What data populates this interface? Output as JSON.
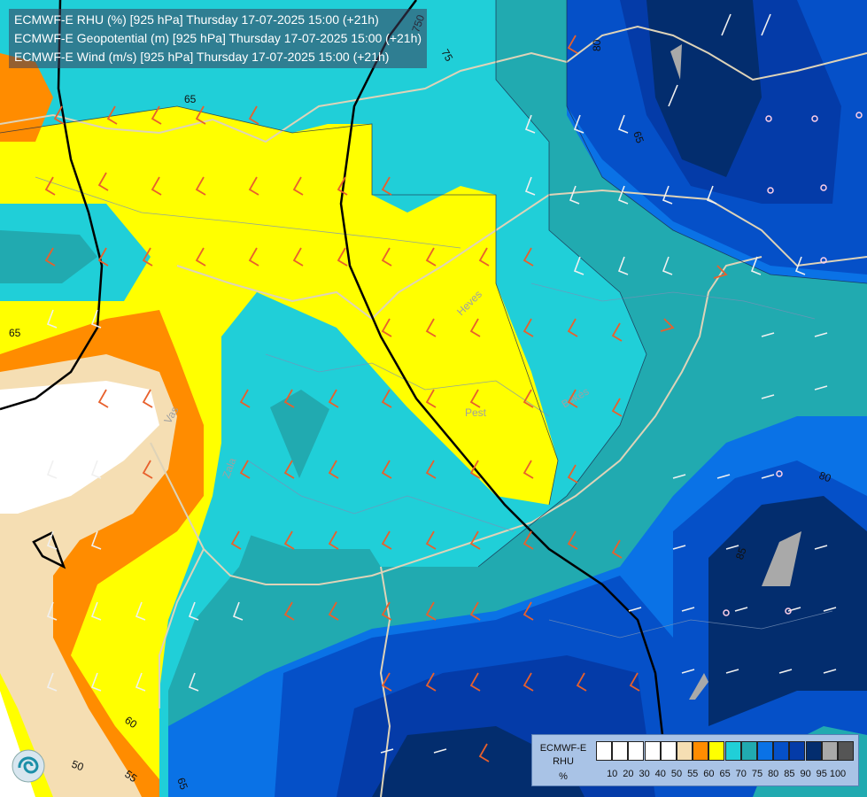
{
  "title": {
    "line1": "ECMWF-E RHU (%) [925 hPa] Thursday 17-07-2025 15:00 (+21h)",
    "line2": "ECMWF-E Geopotential (m) [925 hPa] Thursday 17-07-2025 15:00 (+21h)",
    "line3": "ECMWF-E Wind (m/s) [925 hPa] Thursday 17-07-2025 15:00 (+21h)"
  },
  "contour_labels": {
    "c65a": "65",
    "c65b": "65",
    "c60": "60",
    "c55": "55",
    "c50": "50",
    "c65c": "65",
    "c65d": "65",
    "c80a": "80",
    "c80b": "80",
    "c85": "85",
    "c750": "750",
    "c75": "75"
  },
  "places": {
    "heves": "Heves",
    "pest": "Pest",
    "bekes": "Békés",
    "zala": "Zala",
    "vas": "Vas"
  },
  "legend": {
    "source": "ECMWF-E",
    "variable": "RHU",
    "unit": "%",
    "colors": [
      "#ffffff",
      "#ffffff",
      "#ffffff",
      "#ffffff",
      "#ffffff",
      "#f5deb3",
      "#ff8c00",
      "#ffff00",
      "#20cfd8",
      "#21aab0",
      "#0a72e6",
      "#0550c8",
      "#043ba8",
      "#032d6e",
      "#a9a9a9",
      "#555555"
    ],
    "ticks": [
      "10",
      "20",
      "30",
      "40",
      "50",
      "55",
      "60",
      "65",
      "70",
      "75",
      "80",
      "85",
      "90",
      "95",
      "100"
    ]
  }
}
